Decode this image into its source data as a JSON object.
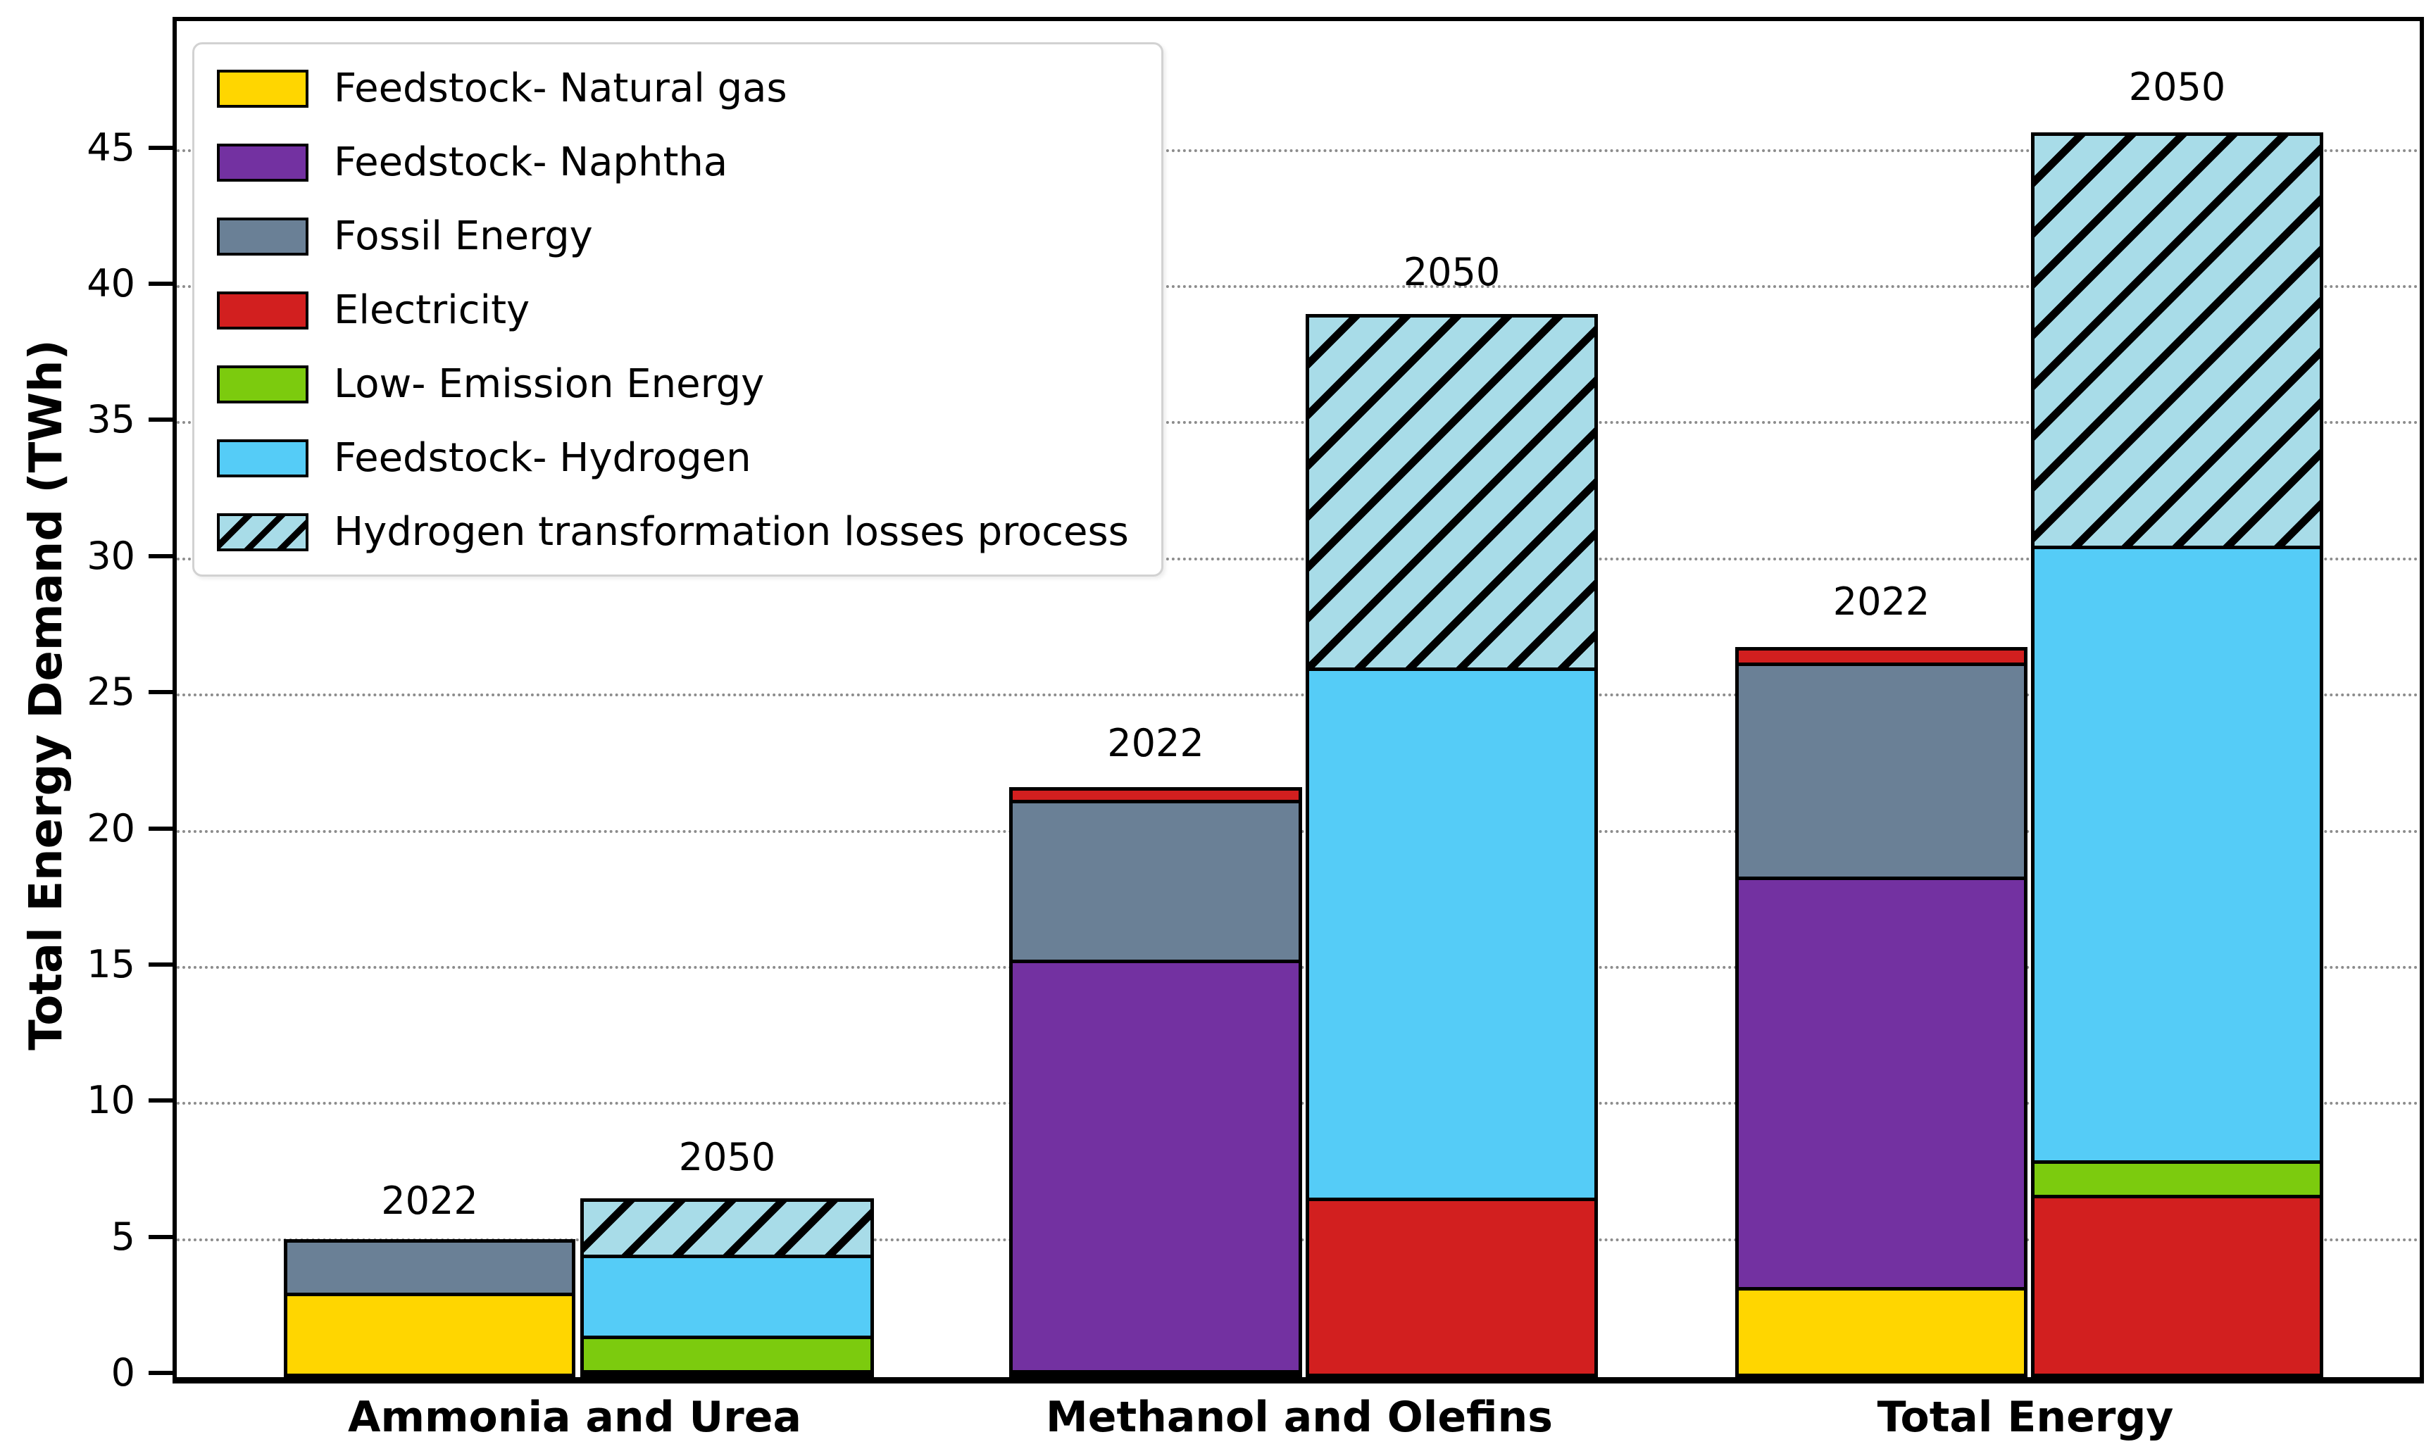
{
  "figure": {
    "type": "stacked-bar-chart",
    "background": "#ffffff",
    "ylabel": "Total Energy Demand (TWh)"
  },
  "legend": {
    "position": "upper left",
    "items": [
      {
        "label": "Feedstock- Natural gas",
        "color": "#FFD600",
        "hatch": false
      },
      {
        "label": "Feedstock- Naphtha",
        "color": "#7331A1",
        "hatch": false
      },
      {
        "label": "Fossil Energy",
        "color": "#6A8096",
        "hatch": false
      },
      {
        "label": "Electricity",
        "color": "#D21F1F",
        "hatch": false
      },
      {
        "label": "Low- Emission Energy",
        "color": "#7CCB0E",
        "hatch": false
      },
      {
        "label": "Feedstock- Hydrogen",
        "color": "#55CCF7",
        "hatch": false
      },
      {
        "label": "Hydrogen transformation losses process",
        "color": "#A8DCE8",
        "hatch": true
      }
    ]
  },
  "chart_data": {
    "type": "bar",
    "stacked": true,
    "stack_from": "bottom",
    "title": "",
    "xlabel": "",
    "ylabel": "Total Energy Demand (TWh)",
    "categories": [
      "Ammonia and Urea",
      "Methanol and Olefins",
      "Total Energy"
    ],
    "ylim": [
      0,
      49.8
    ],
    "yticks": [
      0,
      5,
      10,
      15,
      20,
      25,
      30,
      35,
      40,
      45
    ],
    "grid": "horizontal dotted gray at every 5 TWh",
    "legend_position": "upper left",
    "bar_edge_color": "#000000",
    "colors": {
      "Feedstock- Natural gas": "#FFD600",
      "Feedstock- Naphtha": "#7331A1",
      "Fossil Energy": "#6A8096",
      "Electricity": "#D21F1F",
      "Low- Emission Energy": "#7CCB0E",
      "Feedstock- Hydrogen": "#55CCF7",
      "Hydrogen transformation losses process": "#A8DCE8"
    },
    "bars": [
      {
        "group": "Ammonia and Urea",
        "year": "2022",
        "total": 5.2,
        "segments": [
          {
            "name": "Feedstock- Natural gas",
            "value": 3.1
          },
          {
            "name": "Fossil Energy",
            "value": 2.1
          }
        ]
      },
      {
        "group": "Ammonia and Urea",
        "year": "2050",
        "total": 6.8,
        "segments": [
          {
            "name": "Electricity",
            "value": 0.1
          },
          {
            "name": "Low- Emission Energy",
            "value": 1.4
          },
          {
            "name": "Feedstock- Hydrogen",
            "value": 3.1
          },
          {
            "name": "Hydrogen transformation losses process",
            "value": 2.2
          }
        ]
      },
      {
        "group": "Methanol and Olefins",
        "year": "2022",
        "total": 22.0,
        "segments": [
          {
            "name": "Feedstock- Natural gas",
            "value": 0.2
          },
          {
            "name": "Feedstock- Naphtha",
            "value": 15.2
          },
          {
            "name": "Fossil Energy",
            "value": 6.0
          },
          {
            "name": "Electricity",
            "value": 0.6
          }
        ]
      },
      {
        "group": "Methanol and Olefins",
        "year": "2050",
        "total": 39.3,
        "segments": [
          {
            "name": "Electricity",
            "value": 6.6
          },
          {
            "name": "Feedstock- Hydrogen",
            "value": 19.6
          },
          {
            "name": "Hydrogen transformation losses process",
            "value": 13.1
          }
        ]
      },
      {
        "group": "Total Energy",
        "year": "2022",
        "total": 27.2,
        "segments": [
          {
            "name": "Feedstock- Natural gas",
            "value": 3.3
          },
          {
            "name": "Feedstock- Naphtha",
            "value": 15.2
          },
          {
            "name": "Fossil Energy",
            "value": 8.0
          },
          {
            "name": "Electricity",
            "value": 0.7
          }
        ]
      },
      {
        "group": "Total Energy",
        "year": "2050",
        "total": 46.1,
        "segments": [
          {
            "name": "Electricity",
            "value": 6.7
          },
          {
            "name": "Low- Emission Energy",
            "value": 1.4
          },
          {
            "name": "Feedstock- Hydrogen",
            "value": 22.7
          },
          {
            "name": "Hydrogen transformation losses process",
            "value": 15.3
          }
        ]
      }
    ]
  }
}
